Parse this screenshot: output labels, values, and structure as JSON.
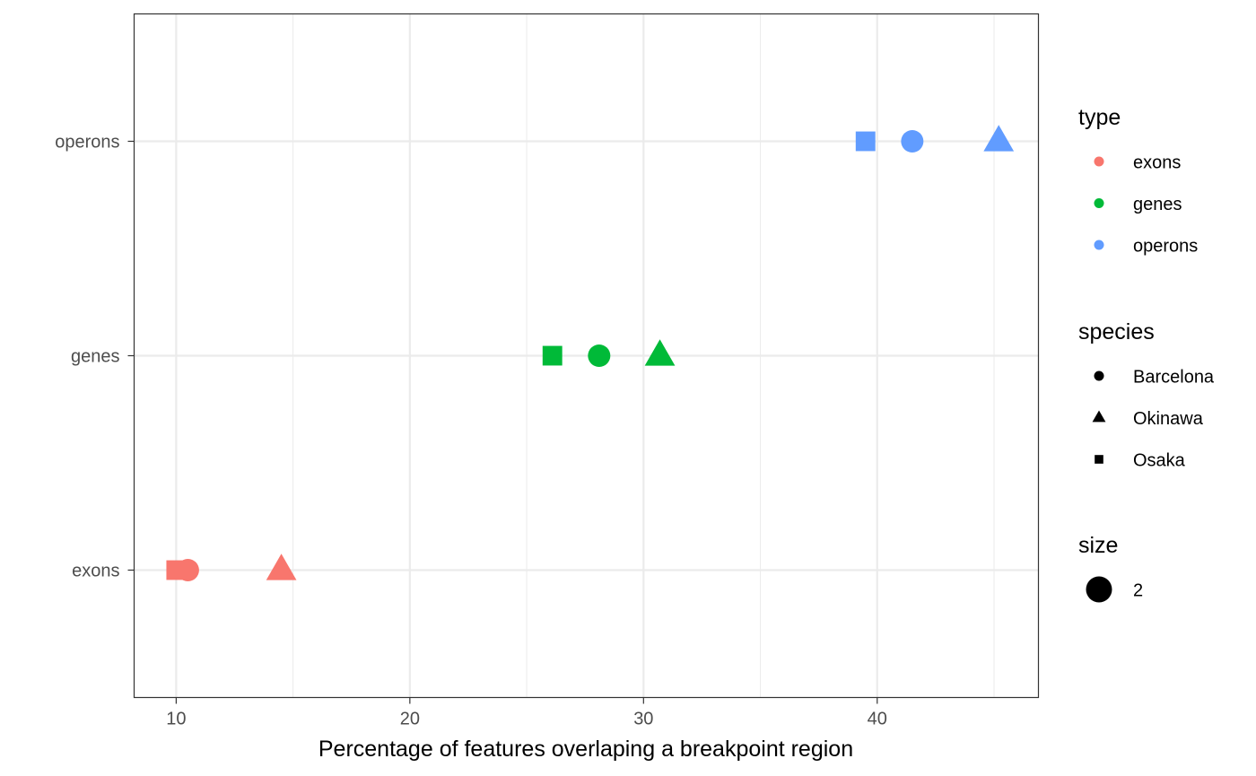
{
  "chart_data": {
    "type": "scatter",
    "xlabel": "Percentage of features overlaping a breakpoint region",
    "ylabel": "",
    "xlim": [
      8.2,
      46.9
    ],
    "x_ticks": [
      10,
      20,
      30,
      40
    ],
    "x_tick_labels": [
      "10",
      "20",
      "30",
      "40"
    ],
    "categories": [
      "exons",
      "genes",
      "operons"
    ],
    "grid": true,
    "legend_placement": "right",
    "colors": {
      "exons": "#F8766D",
      "genes": "#00BA38",
      "operons": "#619CFF"
    },
    "shapes": {
      "Barcelona": "circle",
      "Okinawa": "triangle",
      "Osaka": "square"
    },
    "points": [
      {
        "type": "exons",
        "species": "Osaka",
        "x": 10.0
      },
      {
        "type": "exons",
        "species": "Barcelona",
        "x": 10.5
      },
      {
        "type": "exons",
        "species": "Okinawa",
        "x": 14.5
      },
      {
        "type": "genes",
        "species": "Osaka",
        "x": 26.1
      },
      {
        "type": "genes",
        "species": "Barcelona",
        "x": 28.1
      },
      {
        "type": "genes",
        "species": "Okinawa",
        "x": 30.7
      },
      {
        "type": "operons",
        "species": "Osaka",
        "x": 39.5
      },
      {
        "type": "operons",
        "species": "Barcelona",
        "x": 41.5
      },
      {
        "type": "operons",
        "species": "Okinawa",
        "x": 45.2
      }
    ],
    "legends": [
      {
        "title": "type",
        "kind": "color",
        "items": [
          "exons",
          "genes",
          "operons"
        ]
      },
      {
        "title": "species",
        "kind": "shape",
        "items": [
          "Barcelona",
          "Okinawa",
          "Osaka"
        ]
      },
      {
        "title": "size",
        "kind": "size",
        "items": [
          "2"
        ]
      }
    ]
  }
}
